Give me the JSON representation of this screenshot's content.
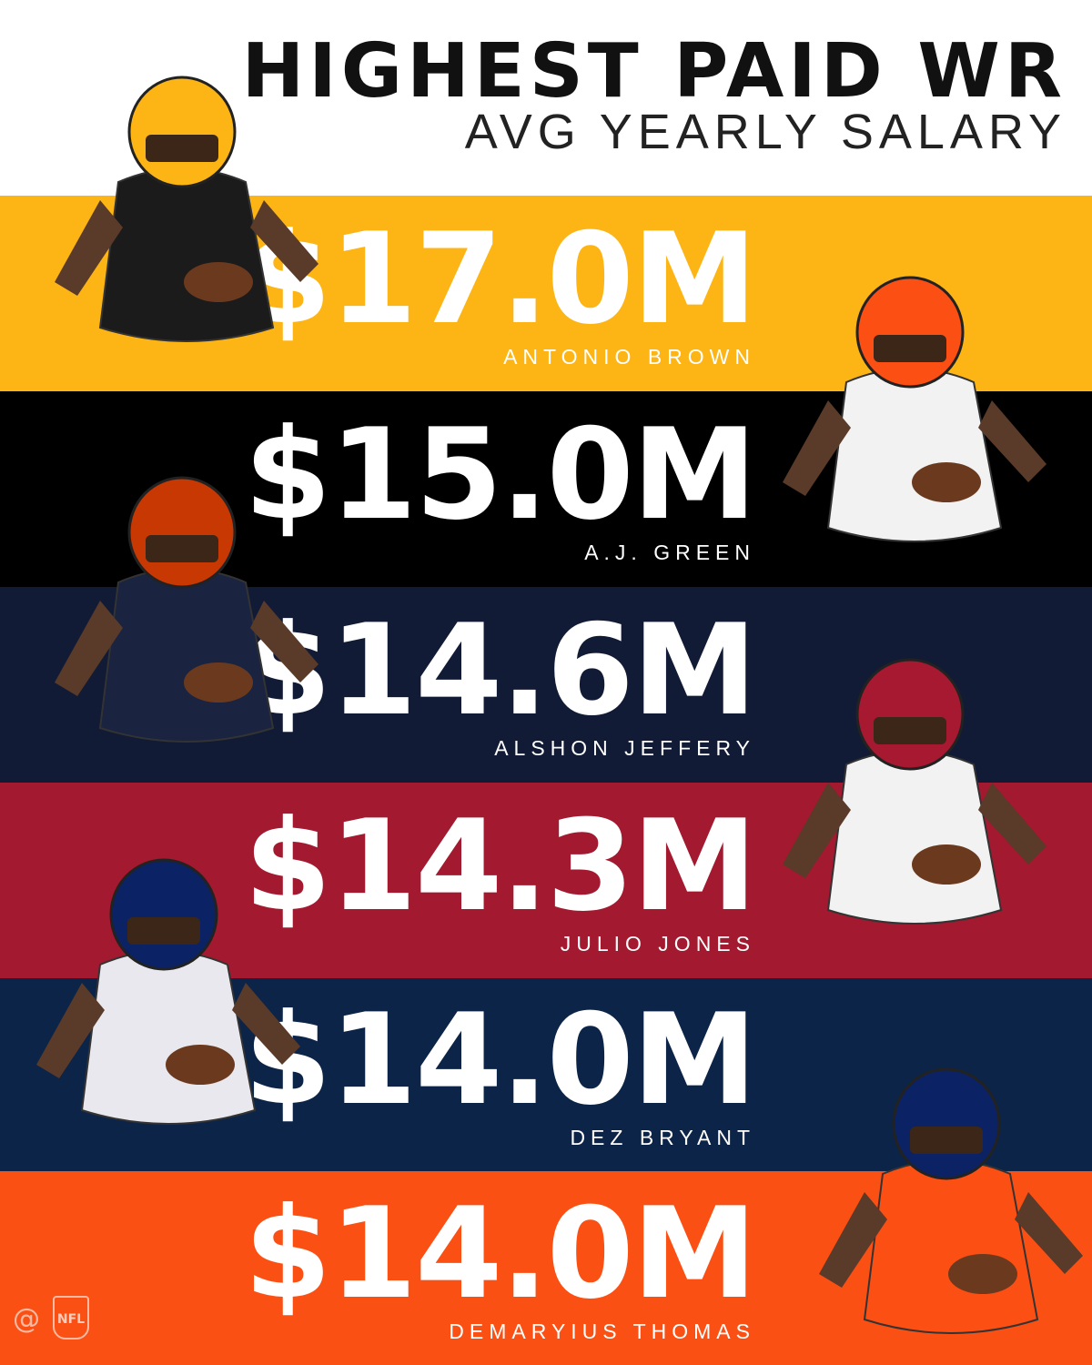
{
  "header": {
    "title": "HIGHEST PAID WR",
    "subtitle": "AVG YEARLY SALARY"
  },
  "rows": [
    {
      "salary": "$17.0M",
      "name": "ANTONIO BROWN",
      "color": "#fdb515"
    },
    {
      "salary": "$15.0M",
      "name": "A.J. GREEN",
      "color": "#000000"
    },
    {
      "salary": "$14.6M",
      "name": "ALSHON JEFFERY",
      "color": "#121b35"
    },
    {
      "salary": "$14.3M",
      "name": "JULIO JONES",
      "color": "#a3192f"
    },
    {
      "salary": "$14.0M",
      "name": "DEZ BRYANT",
      "color": "#0c2447"
    },
    {
      "salary": "$14.0M",
      "name": "DEMARYIUS THOMAS",
      "color": "#fb5014"
    }
  ],
  "footer": {
    "handle": "@",
    "logo": "NFL"
  }
}
